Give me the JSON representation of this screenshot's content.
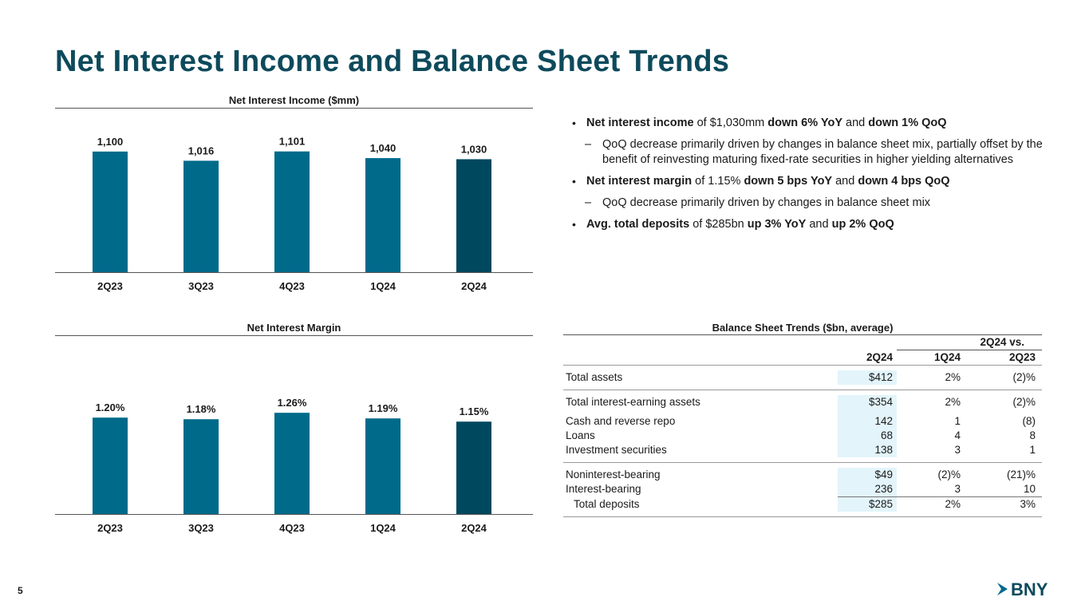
{
  "page": {
    "title": "Net Interest Income and Balance Sheet Trends",
    "number": "5",
    "logo_text": "BNY"
  },
  "colors": {
    "title": "#0d4a5c",
    "bar": "#006a8a",
    "bar_latest": "#00485e",
    "highlight": "#e3f4fb"
  },
  "chart_data": [
    {
      "type": "bar",
      "title": "Net Interest Income ($mm)",
      "categories": [
        "2Q23",
        "3Q23",
        "4Q23",
        "1Q24",
        "2Q24"
      ],
      "values": [
        1100,
        1016,
        1101,
        1040,
        1030
      ],
      "labels": [
        "1,100",
        "1,016",
        "1,101",
        "1,040",
        "1,030"
      ],
      "ylim": [
        0,
        1310
      ]
    },
    {
      "type": "bar",
      "title": "Net Interest Margin",
      "categories": [
        "2Q23",
        "3Q23",
        "4Q23",
        "1Q24",
        "2Q24"
      ],
      "values": [
        1.2,
        1.18,
        1.26,
        1.19,
        1.15
      ],
      "labels": [
        "1.20%",
        "1.18%",
        "1.26%",
        "1.19%",
        "1.15%"
      ],
      "ylim": [
        0,
        1.5
      ]
    }
  ],
  "bullets": {
    "b1": {
      "bold1": "Net interest income",
      "t1": " of $1,030mm ",
      "bold2": "down 6% YoY",
      "t2": " and ",
      "bold3": "down 1% QoQ"
    },
    "b1_sub": "QoQ decrease primarily driven by changes in balance sheet mix, partially offset by the benefit of reinvesting maturing fixed-rate securities in higher yielding alternatives",
    "b2": {
      "bold1": "Net interest margin",
      "t1": " of 1.15% ",
      "bold2": "down 5 bps YoY",
      "t2": " and ",
      "bold3": "down 4 bps QoQ"
    },
    "b2_sub": "QoQ decrease primarily driven by changes in balance sheet mix",
    "b3": {
      "bold1": "Avg. total deposits",
      "t1": " of $285bn ",
      "bold2": "up 3% YoY",
      "t2": " and ",
      "bold3": "up 2% QoQ"
    },
    "bullet_char": "•",
    "dash_char": "–"
  },
  "table": {
    "title": "Balance Sheet Trends ($bn, average)",
    "group_header": "2Q24 vs.",
    "col_headers": [
      "2Q24",
      "1Q24",
      "2Q23"
    ],
    "rows": {
      "total_assets": [
        "Total assets",
        "$412",
        "2%",
        "(2)%"
      ],
      "iea": [
        "Total interest-earning assets",
        "$354",
        "2%",
        "(2)%"
      ],
      "cash": [
        "Cash and reverse repo",
        "142",
        "1",
        "(8)"
      ],
      "loans": [
        "Loans",
        "68",
        "4",
        "8"
      ],
      "inv": [
        "Investment securities",
        "138",
        "3",
        "1"
      ],
      "nib": [
        "Noninterest-bearing",
        "$49",
        "(2)%",
        "(21)%"
      ],
      "ib": [
        "Interest-bearing",
        "236",
        "3",
        "10"
      ],
      "deposits": [
        "Total deposits",
        "$285",
        "2%",
        "3%"
      ]
    }
  }
}
